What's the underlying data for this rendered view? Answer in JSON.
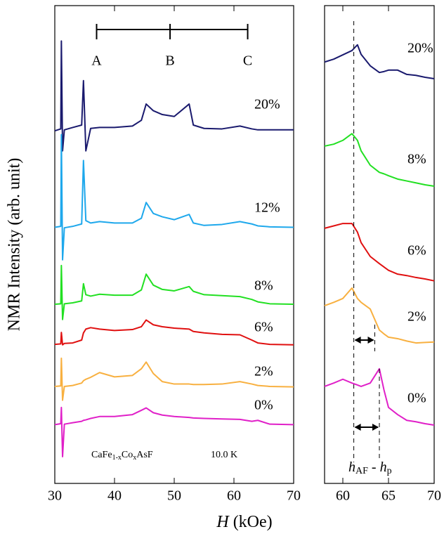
{
  "chart_data": [
    {
      "type": "line",
      "ylabel": "NMR Intensity (arb. unit)",
      "xlabel_parts": [
        "H",
        " (kOe)"
      ],
      "xlim": [
        30,
        70
      ],
      "ylim": [
        0,
        100
      ],
      "xticks": [
        30,
        40,
        50,
        60,
        70
      ],
      "x": [
        30,
        31,
        31.1,
        31.3,
        31.6,
        33,
        34.5,
        34.8,
        35.2,
        36,
        37.5,
        40,
        43,
        44.5,
        45.3,
        46.5,
        48,
        50,
        52.5,
        53.2,
        55,
        58,
        61,
        63,
        64,
        66,
        70
      ],
      "series": [
        {
          "name": "20%",
          "color": "#1a1a6e",
          "values": [
            73.8,
            74.2,
            92.6,
            69.6,
            74,
            74.5,
            75,
            84.3,
            69.6,
            74.3,
            74.5,
            74.5,
            74.8,
            76,
            79.4,
            78,
            77.2,
            76.8,
            79.4,
            75,
            74.3,
            74.2,
            74.8,
            74.2,
            74,
            74,
            74
          ]
        },
        {
          "name": "12%",
          "color": "#1ea8ec",
          "values": [
            53.6,
            53.8,
            73,
            46.8,
            53.5,
            53.8,
            54.3,
            67.6,
            55,
            54.5,
            54.8,
            54.5,
            54.5,
            55.5,
            58.8,
            56.5,
            55.8,
            55.2,
            56.3,
            54.5,
            54,
            54.2,
            54.8,
            54.3,
            53.9,
            53.7,
            53.6
          ]
        },
        {
          "name": "8%",
          "color": "#22e022",
          "values": [
            37.5,
            37.6,
            45.6,
            34.3,
            37.6,
            37.8,
            38.2,
            41.8,
            39.5,
            39.2,
            39.6,
            39.4,
            39.4,
            40.5,
            43.8,
            41.5,
            40.6,
            40.3,
            41.2,
            40.2,
            39.5,
            39.3,
            39.1,
            38.5,
            38,
            37.6,
            37.5
          ]
        },
        {
          "name": "6%",
          "color": "#e01010",
          "values": [
            29.1,
            29.2,
            31.6,
            29,
            29.3,
            29.4,
            30,
            31.5,
            32.3,
            32.6,
            32.3,
            32,
            32.2,
            32.8,
            34.2,
            33.2,
            32.8,
            32.5,
            32.3,
            31.8,
            31.5,
            31.2,
            31.1,
            30,
            29.4,
            29.1,
            29
          ]
        },
        {
          "name": "2%",
          "color": "#f8b040",
          "values": [
            20.3,
            20.4,
            26.2,
            17.4,
            20.3,
            20.5,
            21,
            21.5,
            21.8,
            22.2,
            23.2,
            22.3,
            22.6,
            24,
            25.4,
            23,
            21.3,
            20.8,
            20.8,
            20.7,
            20.7,
            20.8,
            21.3,
            20.8,
            20.5,
            20.3,
            20.2
          ]
        },
        {
          "name": "0%",
          "color": "#e020c8",
          "values": [
            12.3,
            12.5,
            15.9,
            5.6,
            12.4,
            12.7,
            13,
            13.2,
            13.3,
            13.6,
            14,
            14,
            14.4,
            15.3,
            15.8,
            14.8,
            14.3,
            14,
            13.8,
            13.7,
            13.6,
            13.5,
            13.4,
            13,
            13.2,
            12.4,
            12.3
          ]
        }
      ],
      "bracket": {
        "labels": [
          "A",
          "B",
          "C"
        ],
        "x": [
          37,
          49.3,
          62.3
        ]
      },
      "annotation_parts": [
        "CaFe",
        "1-x",
        "Co",
        "x",
        "AsF"
      ],
      "temperature": "10.0 K"
    },
    {
      "type": "line",
      "xlim": [
        58,
        70
      ],
      "ylim": [
        0,
        100
      ],
      "xticks": [
        60,
        65,
        70
      ],
      "x": [
        58,
        59,
        60,
        61,
        61.6,
        62,
        63,
        64,
        64.5,
        65,
        66,
        67,
        68,
        69,
        70
      ],
      "series": [
        {
          "name": "20%",
          "color": "#1a1a6e",
          "values": [
            88.2,
            88.8,
            89.7,
            90.6,
            91.8,
            89.8,
            87.4,
            86,
            86.2,
            86.5,
            86.5,
            85.6,
            85.4,
            85,
            84.7
          ]
        },
        {
          "name": "8%",
          "color": "#22e022",
          "values": [
            70.6,
            71,
            71.8,
            73.2,
            71.8,
            69.6,
            66.6,
            65.1,
            64.8,
            64.4,
            63.7,
            63.3,
            62.9,
            62.5,
            62.2
          ]
        },
        {
          "name": "6%",
          "color": "#e01010",
          "values": [
            53.4,
            53.9,
            54.4,
            54.4,
            52.6,
            50.4,
            47.5,
            46,
            45.3,
            44.6,
            43.8,
            43.5,
            43.1,
            42.8,
            42.4
          ]
        },
        {
          "name": "2%",
          "color": "#f8b040",
          "values": [
            37.2,
            37.9,
            38.7,
            40.9,
            38.7,
            37.9,
            36.5,
            32.1,
            31.3,
            30.6,
            30.3,
            29.8,
            29.4,
            29.5,
            29.6
          ]
        },
        {
          "name": "0%",
          "color": "#e020c8",
          "values": [
            20.3,
            21,
            21.8,
            21,
            20.6,
            20.3,
            21,
            24,
            19.6,
            15.9,
            14.4,
            13.2,
            12.9,
            12.5,
            12.2
          ]
        }
      ],
      "reference_lines": {
        "h_p": 61.2,
        "h_af": [
          63.5,
          64
        ]
      },
      "annotation_parts": [
        "h",
        "AF",
        " - ",
        "h",
        "p"
      ]
    }
  ]
}
